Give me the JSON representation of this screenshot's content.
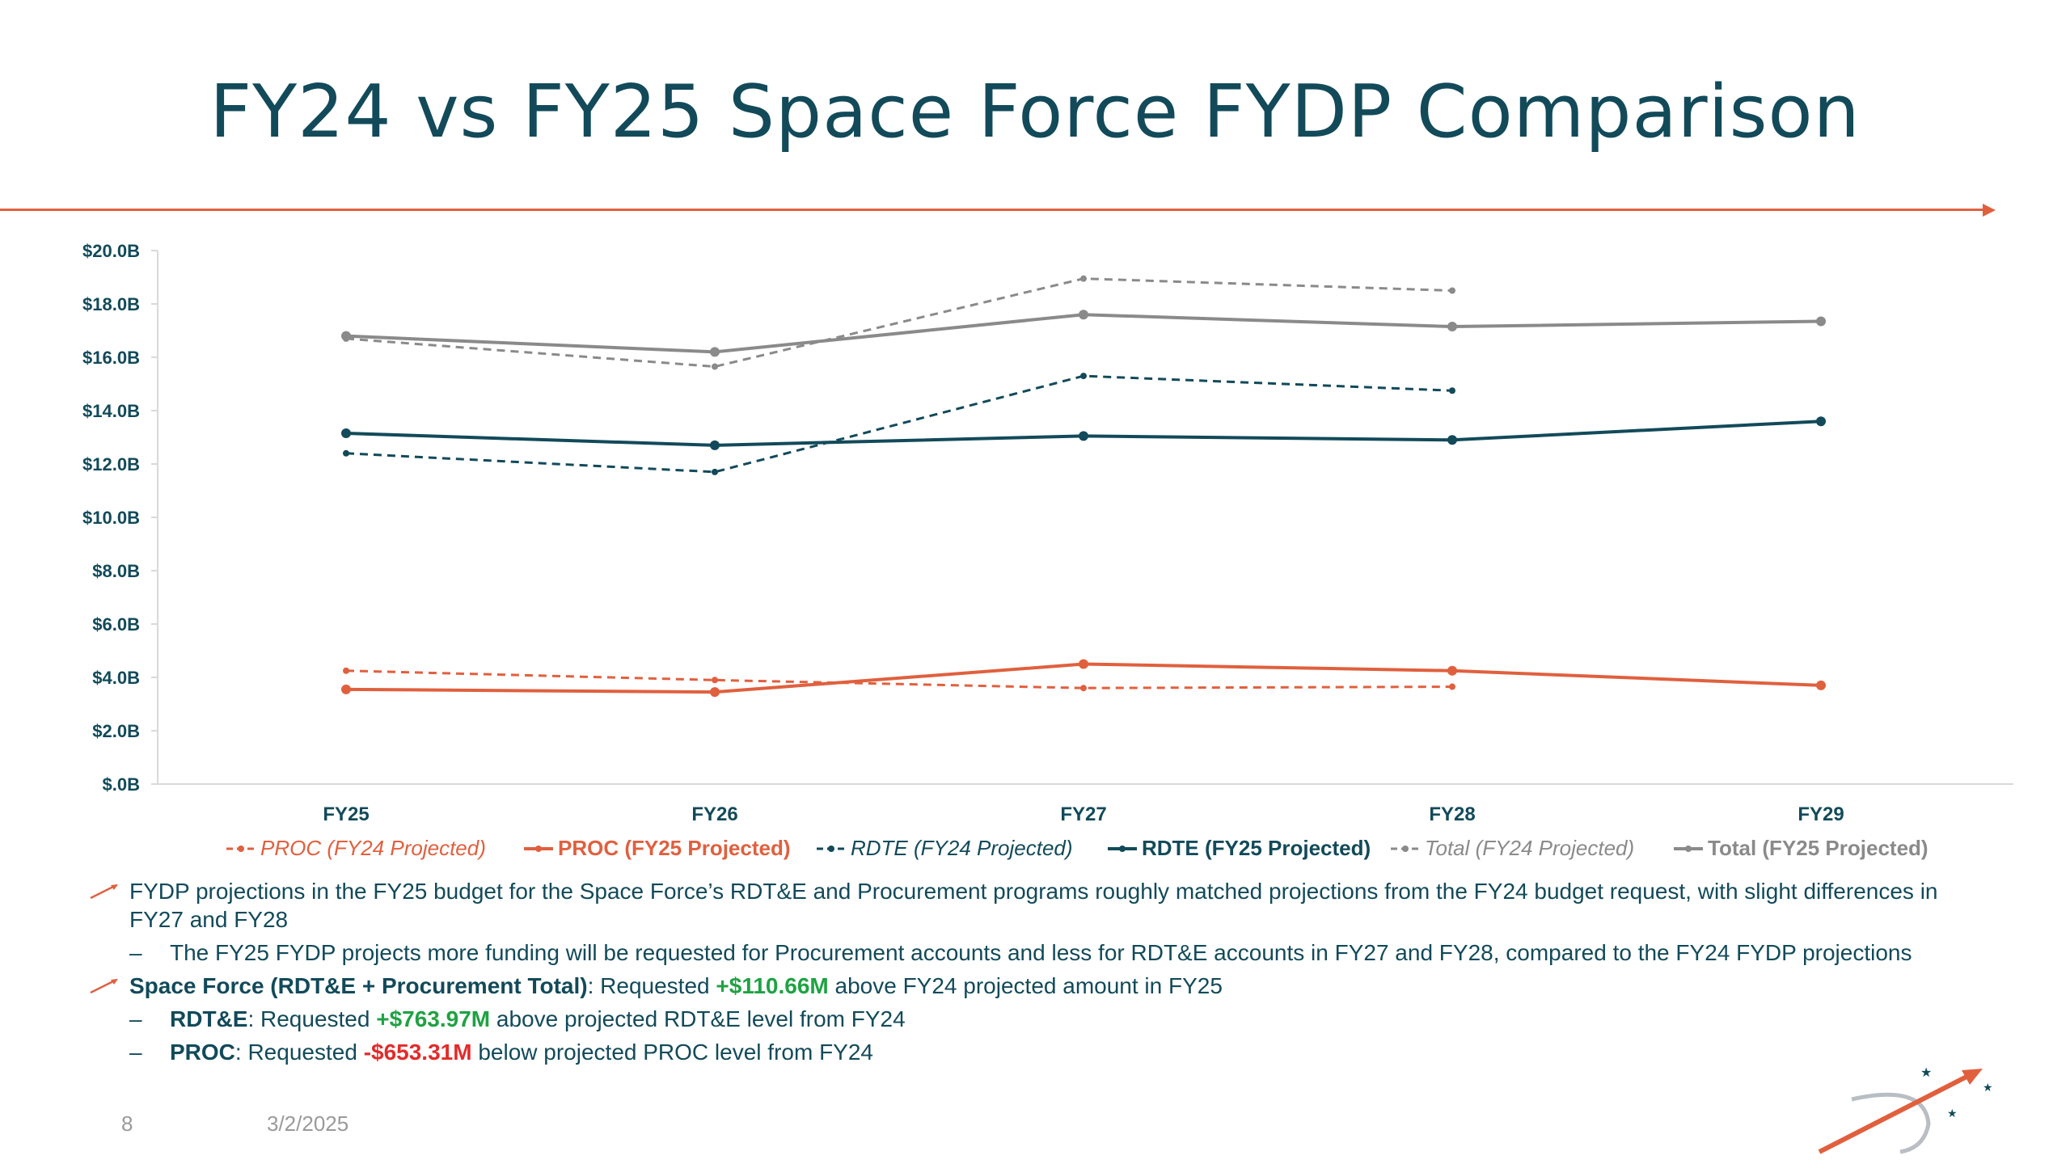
{
  "slide": {
    "title": "FY24 vs FY25 Space Force FYDP Comparison",
    "page_number": "8",
    "date": "3/2/2025"
  },
  "colors": {
    "accent": "#e0603e",
    "title": "#124a5a",
    "proc": "#e0603e",
    "rdte": "#124a5a",
    "total": "#8a8a8a",
    "positive": "#1fa243",
    "negative": "#e32b2b"
  },
  "chart_data": {
    "type": "line",
    "categories": [
      "FY25",
      "FY26",
      "FY27",
      "FY28",
      "FY29"
    ],
    "ylim": [
      0,
      20
    ],
    "yticks": [
      0,
      2,
      4,
      6,
      8,
      10,
      12,
      14,
      16,
      18,
      20
    ],
    "ytick_labels": [
      "$.0B",
      "$2.0B",
      "$4.0B",
      "$6.0B",
      "$8.0B",
      "$10.0B",
      "$12.0B",
      "$14.0B",
      "$16.0B",
      "$18.0B",
      "$20.0B"
    ],
    "legend_position": "bottom",
    "series": [
      {
        "name": "PROC (FY24 Projected)",
        "values": [
          4.25,
          3.9,
          3.6,
          3.65,
          null
        ],
        "color": "#e0603e",
        "dashed": true,
        "italic": true
      },
      {
        "name": "PROC (FY25 Projected)",
        "values": [
          3.55,
          3.45,
          4.5,
          4.25,
          3.7
        ],
        "color": "#e0603e",
        "dashed": false,
        "italic": false
      },
      {
        "name": "RDTE (FY24 Projected)",
        "values": [
          12.4,
          11.7,
          15.3,
          14.75,
          null
        ],
        "color": "#124a5a",
        "dashed": true,
        "italic": true
      },
      {
        "name": "RDTE (FY25 Projected)",
        "values": [
          13.15,
          12.7,
          13.05,
          12.9,
          13.6
        ],
        "color": "#124a5a",
        "dashed": false,
        "italic": false
      },
      {
        "name": "Total (FY24 Projected)",
        "values": [
          16.7,
          15.65,
          18.95,
          18.5,
          null
        ],
        "color": "#8a8a8a",
        "dashed": true,
        "italic": true
      },
      {
        "name": "Total (FY25 Projected)",
        "values": [
          16.8,
          16.2,
          17.6,
          17.15,
          17.35
        ],
        "color": "#8a8a8a",
        "dashed": false,
        "italic": false
      }
    ]
  },
  "bullets": {
    "b1": {
      "text": "FYDP projections in the FY25 budget for the Space Force’s RDT&E and Procurement programs roughly matched projections from the FY24 budget request, with slight differences in FY27 and FY28"
    },
    "b1_sub": {
      "dash": "–",
      "text": "The FY25 FYDP projects more funding will be requested for Procurement accounts and less for RDT&E accounts in FY27 and FY28, compared to the FY24 FYDP projections"
    },
    "b2": {
      "bold": "Space Force (RDT&E + Procurement Total)",
      "pre": ": Requested ",
      "amount": "+$110.66M",
      "post": " above FY24 projected amount in FY25"
    },
    "b2_sub1": {
      "dash": "–",
      "bold": "RDT&E",
      "pre": ": Requested ",
      "amount": "+$763.97M",
      "post": " above projected RDT&E level from FY24"
    },
    "b2_sub2": {
      "dash": "–",
      "bold": "PROC",
      "pre": ": Requested ",
      "amount": "-$653.31M",
      "post": " below projected PROC level from FY24"
    }
  }
}
